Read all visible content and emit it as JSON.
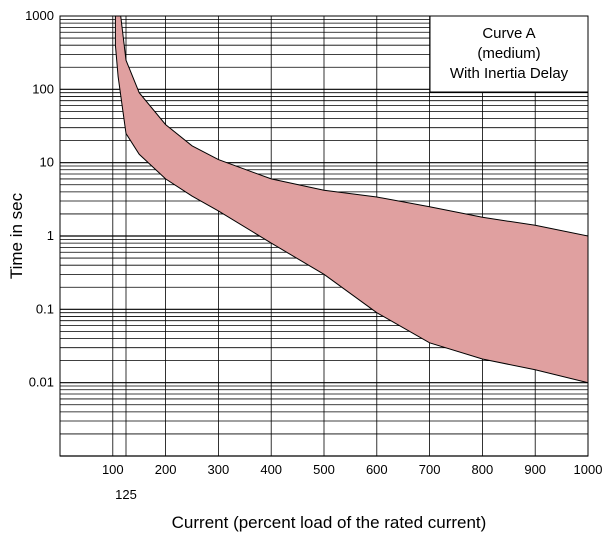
{
  "chart_data": {
    "type": "area",
    "xlabel": "Current (percent load of the rated current)",
    "ylabel": "Time in sec",
    "xlim": [
      0,
      1000
    ],
    "ylim": [
      0.001,
      1000
    ],
    "y_scale": "log",
    "x_ticks": [
      "100",
      "125",
      "200",
      "300",
      "400",
      "500",
      "600",
      "700",
      "800",
      "900",
      "1000"
    ],
    "y_ticks": [
      "1000",
      "100",
      "10",
      "1",
      "0.1",
      "0.01"
    ],
    "grid": true,
    "legend": {
      "lines": [
        "Curve A",
        "(medium)",
        "With Inertia Delay"
      ],
      "position": "top-right"
    },
    "colors": {
      "band_fill": "#e0a0a0",
      "band_stroke": "#000000",
      "grid": "#000000"
    },
    "series": [
      {
        "role": "upper_bound",
        "x": [
          115,
          115,
          125,
          150,
          200,
          250,
          300,
          400,
          500,
          600,
          700,
          800,
          900,
          1000
        ],
        "y": [
          1000,
          1000,
          250,
          90,
          33,
          17,
          11,
          6,
          4.2,
          3.4,
          2.5,
          1.8,
          1.4,
          1.0
        ]
      },
      {
        "role": "lower_bound",
        "x": [
          105,
          105,
          110,
          125,
          150,
          200,
          250,
          300,
          400,
          500,
          600,
          700,
          800,
          900,
          1000
        ],
        "y": [
          1000,
          400,
          150,
          25,
          13,
          6,
          3.5,
          2.2,
          0.8,
          0.3,
          0.09,
          0.035,
          0.021,
          0.015,
          0.01
        ]
      }
    ]
  }
}
